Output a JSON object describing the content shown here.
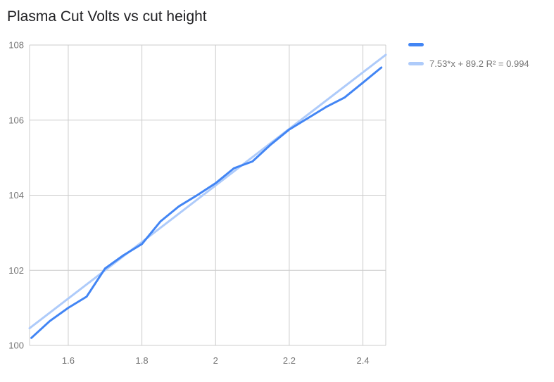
{
  "chart_data": {
    "type": "line",
    "title": "Plasma Cut Volts vs cut height",
    "xlabel": "",
    "ylabel": "",
    "xlim": [
      1.495,
      2.462
    ],
    "ylim": [
      100,
      108
    ],
    "x_ticks": [
      1.6,
      1.8,
      2.0,
      2.2,
      2.4
    ],
    "x_tick_labels": [
      "1.6",
      "1.8",
      "2",
      "2.2",
      "2.4"
    ],
    "y_ticks": [
      100,
      102,
      104,
      106,
      108
    ],
    "grid": true,
    "grid_color": "#cccccc",
    "axis_color": "#757575",
    "legend_position": "top-right",
    "draw_order": [
      1,
      0
    ],
    "series": [
      {
        "id": "data-series",
        "legend_label": "",
        "color": "#4285f4",
        "stroke_width": 3,
        "x": [
          1.5,
          1.55,
          1.6,
          1.65,
          1.7,
          1.75,
          1.8,
          1.85,
          1.9,
          1.95,
          2.0,
          2.05,
          2.1,
          2.15,
          2.2,
          2.25,
          2.3,
          2.35,
          2.4,
          2.45
        ],
        "y": [
          100.2,
          100.65,
          101.0,
          101.3,
          102.05,
          102.4,
          102.7,
          103.3,
          103.7,
          104.0,
          104.32,
          104.72,
          104.9,
          105.35,
          105.75,
          106.05,
          106.35,
          106.6,
          107.0,
          107.4
        ]
      },
      {
        "id": "trendline",
        "legend_label": "7.53*x + 89.2 R² = 0.994",
        "color": "#aecbfa",
        "stroke_width": 3,
        "trend": {
          "slope": 7.53,
          "intercept": 89.2,
          "r_squared": 0.994
        },
        "x": [
          1.495,
          2.462
        ],
        "y": [
          100.457,
          107.739
        ]
      }
    ]
  }
}
